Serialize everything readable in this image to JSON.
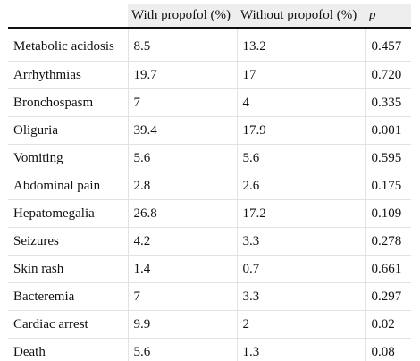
{
  "table": {
    "headers": [
      "",
      "With propofol (%)",
      "Without propofol (%)",
      "p"
    ],
    "rows": [
      {
        "label": "Metabolic acidosis",
        "with": "8.5",
        "without": "13.2",
        "p": "0.457"
      },
      {
        "label": "Arrhythmias",
        "with": "19.7",
        "without": "17",
        "p": "0.720"
      },
      {
        "label": "Bronchospasm",
        "with": "7",
        "without": "4",
        "p": "0.335"
      },
      {
        "label": "Oliguria",
        "with": "39.4",
        "without": "17.9",
        "p": "0.001"
      },
      {
        "label": "Vomiting",
        "with": "5.6",
        "without": "5.6",
        "p": "0.595"
      },
      {
        "label": "Abdominal pain",
        "with": "2.8",
        "without": "2.6",
        "p": "0.175"
      },
      {
        "label": "Hepatomegalia",
        "with": "26.8",
        "without": "17.2",
        "p": "0.109"
      },
      {
        "label": "Seizures",
        "with": "4.2",
        "without": "3.3",
        "p": "0.278"
      },
      {
        "label": "Skin rash",
        "with": "1.4",
        "without": "0.7",
        "p": "0.661"
      },
      {
        "label": "Bacteremia",
        "with": "7",
        "without": "3.3",
        "p": "0.297"
      },
      {
        "label": "Cardiac arrest",
        "with": "9.9",
        "without": "2",
        "p": "0.02"
      },
      {
        "label": "Death",
        "with": "5.6",
        "without": "1.3",
        "p": "0.08"
      }
    ]
  }
}
